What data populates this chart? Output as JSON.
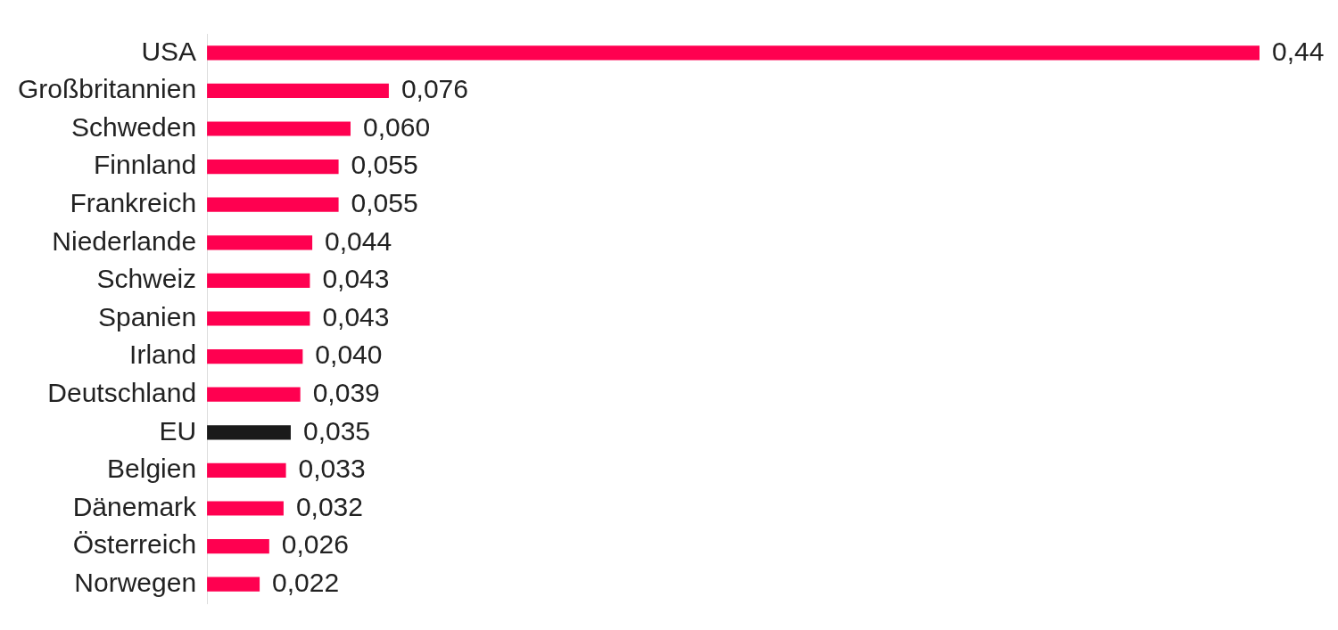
{
  "chart_data": {
    "type": "bar",
    "orientation": "horizontal",
    "categories": [
      "USA",
      "Großbritannien",
      "Schweden",
      "Finnland",
      "Frankreich",
      "Niederlande",
      "Schweiz",
      "Spanien",
      "Irland",
      "Deutschland",
      "EU",
      "Belgien",
      "Dänemark",
      "Österreich",
      "Norwegen"
    ],
    "values": [
      0.44,
      0.076,
      0.06,
      0.055,
      0.055,
      0.044,
      0.043,
      0.043,
      0.04,
      0.039,
      0.035,
      0.033,
      0.032,
      0.026,
      0.022
    ],
    "colors": [
      "#ff0050",
      "#ff0050",
      "#ff0050",
      "#ff0050",
      "#ff0050",
      "#ff0050",
      "#ff0050",
      "#ff0050",
      "#ff0050",
      "#ff0050",
      "#1a1a1a",
      "#ff0050",
      "#ff0050",
      "#ff0050",
      "#ff0050"
    ],
    "value_labels": [
      "0,44",
      "0,076",
      "0,060",
      "0,055",
      "0,055",
      "0,044",
      "0,043",
      "0,043",
      "0,040",
      "0,039",
      "0,035",
      "0,033",
      "0,032",
      "0,026",
      "0,022"
    ],
    "grid": false,
    "legend": false
  }
}
